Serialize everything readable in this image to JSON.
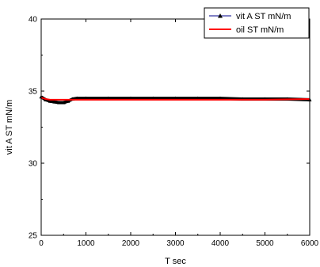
{
  "chart_data": {
    "type": "line",
    "title": "",
    "xlabel": "T sec",
    "ylabel": "vit A ST mN/m",
    "xlim": [
      0,
      6000
    ],
    "ylim": [
      25,
      40
    ],
    "xticks": [
      0,
      1000,
      2000,
      3000,
      4000,
      5000,
      6000
    ],
    "yticks": [
      25,
      30,
      35,
      40
    ],
    "grid": false,
    "legend_position": "top-right",
    "series": [
      {
        "name": "vit A ST mN/m",
        "color": "#000000",
        "line_color": "#00008b",
        "marker": "triangle",
        "x": [
          0,
          100,
          200,
          300,
          400,
          500,
          600,
          700,
          800,
          1000,
          1500,
          2000,
          2500,
          3000,
          3500,
          4000,
          4500,
          5000,
          5500,
          6000
        ],
        "y": [
          34.6,
          34.4,
          34.3,
          34.25,
          34.2,
          34.2,
          34.3,
          34.45,
          34.5,
          34.5,
          34.5,
          34.5,
          34.5,
          34.5,
          34.5,
          34.5,
          34.45,
          34.45,
          34.45,
          34.4
        ]
      },
      {
        "name": "oil ST mN/m",
        "color": "#ff0000",
        "line_color": "#ff0000",
        "marker": "none",
        "x": [
          0,
          100,
          200,
          500,
          1000,
          2000,
          3000,
          4000,
          5000,
          6000
        ],
        "y": [
          34.55,
          34.45,
          34.4,
          34.4,
          34.4,
          34.4,
          34.4,
          34.4,
          34.4,
          34.45
        ]
      }
    ]
  }
}
